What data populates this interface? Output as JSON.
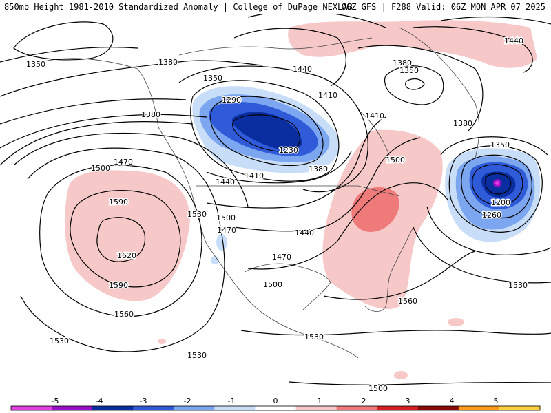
{
  "header": {
    "title": "850mb Height 1981-2010 Standardized Anomaly | College of DuPage NEXLAB",
    "run_info": "06Z GFS | F288 Valid: 06Z MON APR 07 2025"
  },
  "colorbar": {
    "ticks": [
      "-5",
      "-4",
      "-3",
      "-2",
      "-1",
      "0",
      "1",
      "2",
      "3",
      "4",
      "5"
    ],
    "colors": [
      "#e040e0",
      "#9a10c8",
      "#0a2ea0",
      "#2f5bd8",
      "#7da6f0",
      "#c8def8",
      "#ffffff",
      "#f6c8c8",
      "#ef7a7a",
      "#d42020",
      "#8a0a0a",
      "#ff9a1a",
      "#ffd040"
    ]
  },
  "contour_labels": [
    "1350",
    "1380",
    "1440",
    "1380",
    "1350",
    "1440",
    "1350",
    "1290",
    "1410",
    "1410",
    "1380",
    "1230",
    "1380",
    "1500",
    "1350",
    "1470",
    "1500",
    "1410",
    "1440",
    "1590",
    "1530",
    "1500",
    "1470",
    "1440",
    "1200",
    "1260",
    "1620",
    "1470",
    "1500",
    "1590",
    "1530",
    "1560",
    "1560",
    "1530",
    "1530",
    "1530",
    "1500",
    "1380"
  ]
}
